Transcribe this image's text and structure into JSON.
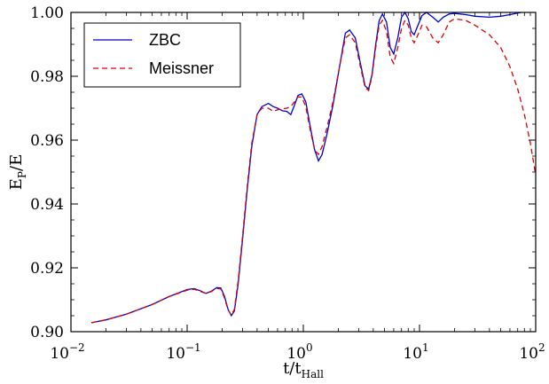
{
  "chart_data": {
    "type": "line",
    "xlabel": "t/t",
    "xlabel_sub": "Hall",
    "ylabel": "E",
    "ylabel_sub": "P",
    "ylabel_tail": "/E",
    "x_scale": "log",
    "xlim": [
      0.01,
      100
    ],
    "ylim": [
      0.9,
      1.0
    ],
    "x_ticks": [
      {
        "value": 0.01,
        "base": "10",
        "exp": "−2"
      },
      {
        "value": 0.1,
        "base": "10",
        "exp": "−1"
      },
      {
        "value": 1,
        "base": "10",
        "exp": "0"
      },
      {
        "value": 10,
        "base": "10",
        "exp": "1"
      },
      {
        "value": 100,
        "base": "10",
        "exp": "2"
      }
    ],
    "y_ticks": [
      "0.90",
      "0.92",
      "0.94",
      "0.96",
      "0.98",
      "1.00"
    ],
    "grid": false,
    "legend_position": "top-left",
    "series": [
      {
        "name": "ZBC",
        "color": "#0000cc",
        "style": "solid",
        "points": [
          [
            0.015,
            0.9028
          ],
          [
            0.02,
            0.9037
          ],
          [
            0.03,
            0.9055
          ],
          [
            0.05,
            0.9085
          ],
          [
            0.07,
            0.911
          ],
          [
            0.1,
            0.9132
          ],
          [
            0.115,
            0.9135
          ],
          [
            0.13,
            0.9128
          ],
          [
            0.145,
            0.912
          ],
          [
            0.16,
            0.9126
          ],
          [
            0.18,
            0.9138
          ],
          [
            0.195,
            0.9137
          ],
          [
            0.21,
            0.911
          ],
          [
            0.225,
            0.907
          ],
          [
            0.24,
            0.905
          ],
          [
            0.255,
            0.9065
          ],
          [
            0.275,
            0.915
          ],
          [
            0.3,
            0.929
          ],
          [
            0.33,
            0.945
          ],
          [
            0.36,
            0.958
          ],
          [
            0.4,
            0.968
          ],
          [
            0.44,
            0.9705
          ],
          [
            0.5,
            0.9715
          ],
          [
            0.55,
            0.9705
          ],
          [
            0.6,
            0.97
          ],
          [
            0.66,
            0.9692
          ],
          [
            0.72,
            0.969
          ],
          [
            0.78,
            0.968
          ],
          [
            0.84,
            0.971
          ],
          [
            0.9,
            0.974
          ],
          [
            0.97,
            0.9745
          ],
          [
            1.05,
            0.972
          ],
          [
            1.15,
            0.964
          ],
          [
            1.25,
            0.957
          ],
          [
            1.35,
            0.9535
          ],
          [
            1.45,
            0.9555
          ],
          [
            1.6,
            0.962
          ],
          [
            1.8,
            0.971
          ],
          [
            2.05,
            0.983
          ],
          [
            2.3,
            0.9935
          ],
          [
            2.5,
            0.9945
          ],
          [
            2.8,
            0.992
          ],
          [
            3.1,
            0.984
          ],
          [
            3.4,
            0.977
          ],
          [
            3.65,
            0.976
          ],
          [
            3.9,
            0.9805
          ],
          [
            4.2,
            0.99
          ],
          [
            4.5,
            0.9975
          ],
          [
            4.8,
            0.9995
          ],
          [
            5.2,
            0.997
          ],
          [
            5.6,
            0.989
          ],
          [
            6.0,
            0.987
          ],
          [
            6.5,
            0.992
          ],
          [
            7.0,
            0.9985
          ],
          [
            7.5,
            1.0
          ],
          [
            8.0,
            0.998
          ],
          [
            8.5,
            0.994
          ],
          [
            9.0,
            0.993
          ],
          [
            9.7,
            0.996
          ],
          [
            10.5,
            0.999
          ],
          [
            11.5,
            1.0
          ],
          [
            13,
            0.9985
          ],
          [
            14.5,
            0.997
          ],
          [
            16,
            0.9985
          ],
          [
            18,
            0.9995
          ],
          [
            20,
            0.9997
          ],
          [
            25,
            0.9993
          ],
          [
            30,
            0.9988
          ],
          [
            40,
            0.9985
          ],
          [
            50,
            0.9988
          ],
          [
            60,
            0.9993
          ],
          [
            70,
            0.9998
          ],
          [
            75,
            1.0
          ]
        ]
      },
      {
        "name": "Meissner",
        "color": "#dd0000",
        "style": "dashed",
        "points": [
          [
            0.015,
            0.9028
          ],
          [
            0.02,
            0.9037
          ],
          [
            0.03,
            0.9055
          ],
          [
            0.05,
            0.9085
          ],
          [
            0.07,
            0.911
          ],
          [
            0.1,
            0.913
          ],
          [
            0.115,
            0.9133
          ],
          [
            0.13,
            0.9126
          ],
          [
            0.145,
            0.912
          ],
          [
            0.16,
            0.9125
          ],
          [
            0.18,
            0.9135
          ],
          [
            0.195,
            0.9134
          ],
          [
            0.21,
            0.9105
          ],
          [
            0.225,
            0.9068
          ],
          [
            0.24,
            0.9052
          ],
          [
            0.255,
            0.907
          ],
          [
            0.275,
            0.916
          ],
          [
            0.3,
            0.93
          ],
          [
            0.33,
            0.946
          ],
          [
            0.36,
            0.959
          ],
          [
            0.4,
            0.968
          ],
          [
            0.44,
            0.97
          ],
          [
            0.5,
            0.97
          ],
          [
            0.55,
            0.969
          ],
          [
            0.6,
            0.9695
          ],
          [
            0.66,
            0.9698
          ],
          [
            0.72,
            0.97
          ],
          [
            0.78,
            0.9705
          ],
          [
            0.84,
            0.972
          ],
          [
            0.9,
            0.9735
          ],
          [
            0.97,
            0.9735
          ],
          [
            1.05,
            0.9705
          ],
          [
            1.15,
            0.963
          ],
          [
            1.25,
            0.957
          ],
          [
            1.35,
            0.9555
          ],
          [
            1.45,
            0.958
          ],
          [
            1.6,
            0.964
          ],
          [
            1.8,
            0.972
          ],
          [
            2.05,
            0.983
          ],
          [
            2.3,
            0.992
          ],
          [
            2.5,
            0.993
          ],
          [
            2.8,
            0.9905
          ],
          [
            3.1,
            0.983
          ],
          [
            3.4,
            0.9765
          ],
          [
            3.65,
            0.9755
          ],
          [
            3.9,
            0.98
          ],
          [
            4.2,
            0.989
          ],
          [
            4.5,
            0.996
          ],
          [
            4.8,
            0.9975
          ],
          [
            5.2,
            0.994
          ],
          [
            5.6,
            0.986
          ],
          [
            6.0,
            0.984
          ],
          [
            6.5,
            0.989
          ],
          [
            7.0,
            0.995
          ],
          [
            7.5,
            0.9975
          ],
          [
            8.0,
            0.996
          ],
          [
            8.5,
            0.992
          ],
          [
            9.0,
            0.9905
          ],
          [
            9.7,
            0.993
          ],
          [
            10.5,
            0.996
          ],
          [
            11.5,
            0.9955
          ],
          [
            13,
            0.992
          ],
          [
            14.5,
            0.9905
          ],
          [
            16,
            0.993
          ],
          [
            18,
            0.997
          ],
          [
            20,
            0.998
          ],
          [
            25,
            0.9975
          ],
          [
            30,
            0.996
          ],
          [
            40,
            0.993
          ],
          [
            50,
            0.989
          ],
          [
            60,
            0.983
          ],
          [
            70,
            0.976
          ],
          [
            80,
            0.968
          ],
          [
            90,
            0.959
          ],
          [
            100,
            0.949
          ]
        ]
      }
    ]
  }
}
